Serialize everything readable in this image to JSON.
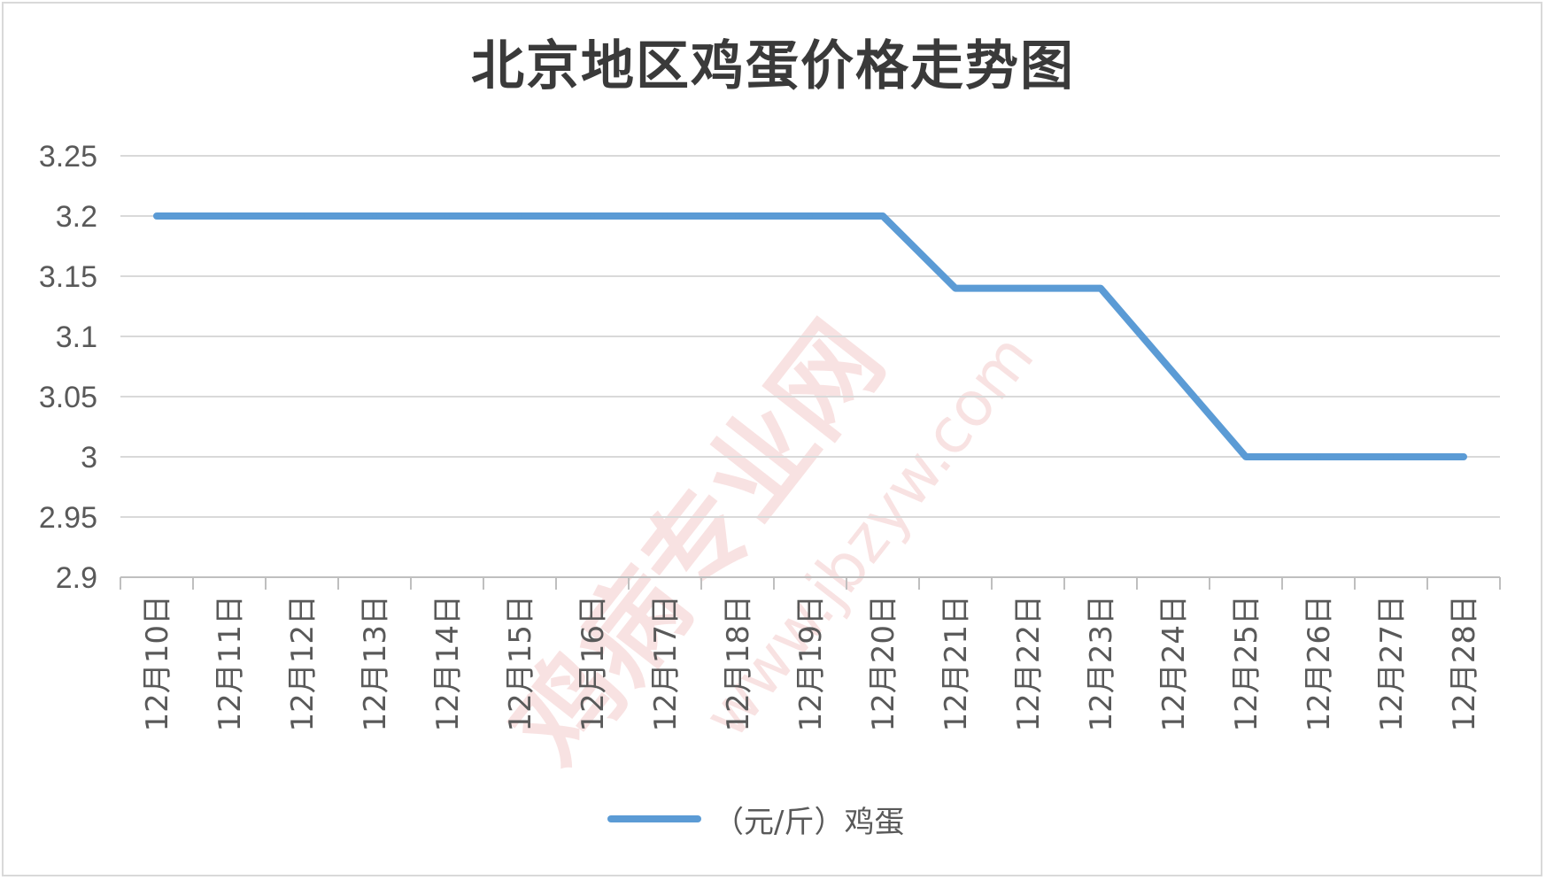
{
  "chart_data": {
    "type": "line",
    "title": "北京地区鸡蛋价格走势图",
    "categories": [
      "12月10日",
      "12月11日",
      "12月12日",
      "12月13日",
      "12月14日",
      "12月15日",
      "12月16日",
      "12月17日",
      "12月18日",
      "12月19日",
      "12月20日",
      "12月21日",
      "12月22日",
      "12月23日",
      "12月24日",
      "12月25日",
      "12月26日",
      "12月27日",
      "12月28日"
    ],
    "series": [
      {
        "name": "（元/斤）鸡蛋",
        "color": "#5b9bd5",
        "values": [
          3.2,
          3.2,
          3.2,
          3.2,
          3.2,
          3.2,
          3.2,
          3.2,
          3.2,
          3.2,
          3.2,
          3.14,
          3.14,
          3.14,
          3.07,
          3.0,
          3.0,
          3.0,
          3.0
        ]
      }
    ],
    "ylim": [
      2.9,
      3.25
    ],
    "yticks": [
      "3.25",
      "3.2",
      "3.15",
      "3.1",
      "3.05",
      "3",
      "2.95",
      "2.9"
    ],
    "grid": true,
    "legend": "bottom"
  },
  "watermark": {
    "text_main": "鸡病专业网",
    "text_url": "www.jbzyw.com",
    "color": "#e8a0a0"
  }
}
